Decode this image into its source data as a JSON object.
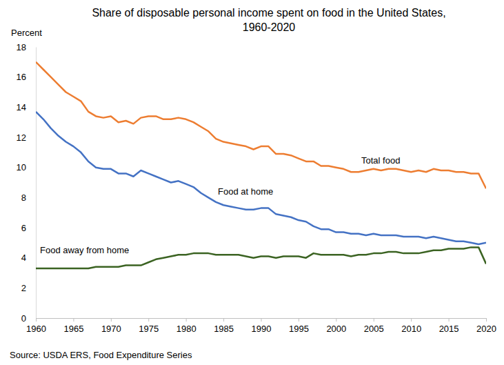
{
  "chart_data": {
    "type": "line",
    "title": "Share of disposable personal income spent on food in the United States,\n1960-2020",
    "y_label": "Percent",
    "source": "Source: USDA ERS, Food Expenditure Series",
    "x": [
      1960,
      1961,
      1962,
      1963,
      1964,
      1965,
      1966,
      1967,
      1968,
      1969,
      1970,
      1971,
      1972,
      1973,
      1974,
      1975,
      1976,
      1977,
      1978,
      1979,
      1980,
      1981,
      1982,
      1983,
      1984,
      1985,
      1986,
      1987,
      1988,
      1989,
      1990,
      1991,
      1992,
      1993,
      1994,
      1995,
      1996,
      1997,
      1998,
      1999,
      2000,
      2001,
      2002,
      2003,
      2004,
      2005,
      2006,
      2007,
      2008,
      2009,
      2010,
      2011,
      2012,
      2013,
      2014,
      2015,
      2016,
      2017,
      2018,
      2019,
      2020
    ],
    "xlim": [
      1960,
      2020
    ],
    "xticks": [
      1960,
      1965,
      1970,
      1975,
      1980,
      1985,
      1990,
      1995,
      2000,
      2005,
      2010,
      2015,
      2020
    ],
    "ylim": [
      0,
      18
    ],
    "yticks": [
      0,
      2,
      4,
      6,
      8,
      10,
      12,
      14,
      16,
      18
    ],
    "grid": false,
    "series": [
      {
        "name": "Total food",
        "color": "#ED7D31",
        "values": [
          17.0,
          16.5,
          16.0,
          15.5,
          15.0,
          14.7,
          14.4,
          13.7,
          13.4,
          13.3,
          13.4,
          13.0,
          13.1,
          12.9,
          13.3,
          13.4,
          13.4,
          13.2,
          13.2,
          13.3,
          13.2,
          13.0,
          12.7,
          12.4,
          11.9,
          11.7,
          11.6,
          11.5,
          11.4,
          11.2,
          11.4,
          11.4,
          10.9,
          10.9,
          10.8,
          10.6,
          10.4,
          10.4,
          10.1,
          10.1,
          10.0,
          9.9,
          9.7,
          9.7,
          9.8,
          9.9,
          9.8,
          9.9,
          9.9,
          9.8,
          9.7,
          9.8,
          9.7,
          9.9,
          9.8,
          9.8,
          9.7,
          9.7,
          9.6,
          9.6,
          8.6
        ]
      },
      {
        "name": "Food at home",
        "color": "#4472C4",
        "values": [
          13.7,
          13.2,
          12.6,
          12.1,
          11.7,
          11.4,
          11.0,
          10.4,
          10.0,
          9.9,
          9.9,
          9.6,
          9.6,
          9.4,
          9.8,
          9.6,
          9.4,
          9.2,
          9.0,
          9.1,
          8.9,
          8.7,
          8.3,
          8.0,
          7.7,
          7.5,
          7.4,
          7.3,
          7.2,
          7.2,
          7.3,
          7.3,
          6.9,
          6.8,
          6.7,
          6.5,
          6.4,
          6.1,
          5.9,
          5.9,
          5.7,
          5.7,
          5.6,
          5.6,
          5.5,
          5.6,
          5.5,
          5.5,
          5.5,
          5.4,
          5.4,
          5.4,
          5.3,
          5.4,
          5.3,
          5.2,
          5.1,
          5.1,
          5.0,
          4.9,
          5.0
        ]
      },
      {
        "name": "Food away from home",
        "color": "#3B6322",
        "values": [
          3.3,
          3.3,
          3.3,
          3.3,
          3.3,
          3.3,
          3.3,
          3.3,
          3.4,
          3.4,
          3.4,
          3.4,
          3.5,
          3.5,
          3.5,
          3.7,
          3.9,
          4.0,
          4.1,
          4.2,
          4.2,
          4.3,
          4.3,
          4.3,
          4.2,
          4.2,
          4.2,
          4.2,
          4.1,
          4.0,
          4.1,
          4.1,
          4.0,
          4.1,
          4.1,
          4.1,
          4.0,
          4.3,
          4.2,
          4.2,
          4.2,
          4.2,
          4.1,
          4.2,
          4.2,
          4.3,
          4.3,
          4.4,
          4.4,
          4.3,
          4.3,
          4.3,
          4.4,
          4.5,
          4.5,
          4.6,
          4.6,
          4.6,
          4.7,
          4.7,
          3.6
        ]
      }
    ]
  }
}
